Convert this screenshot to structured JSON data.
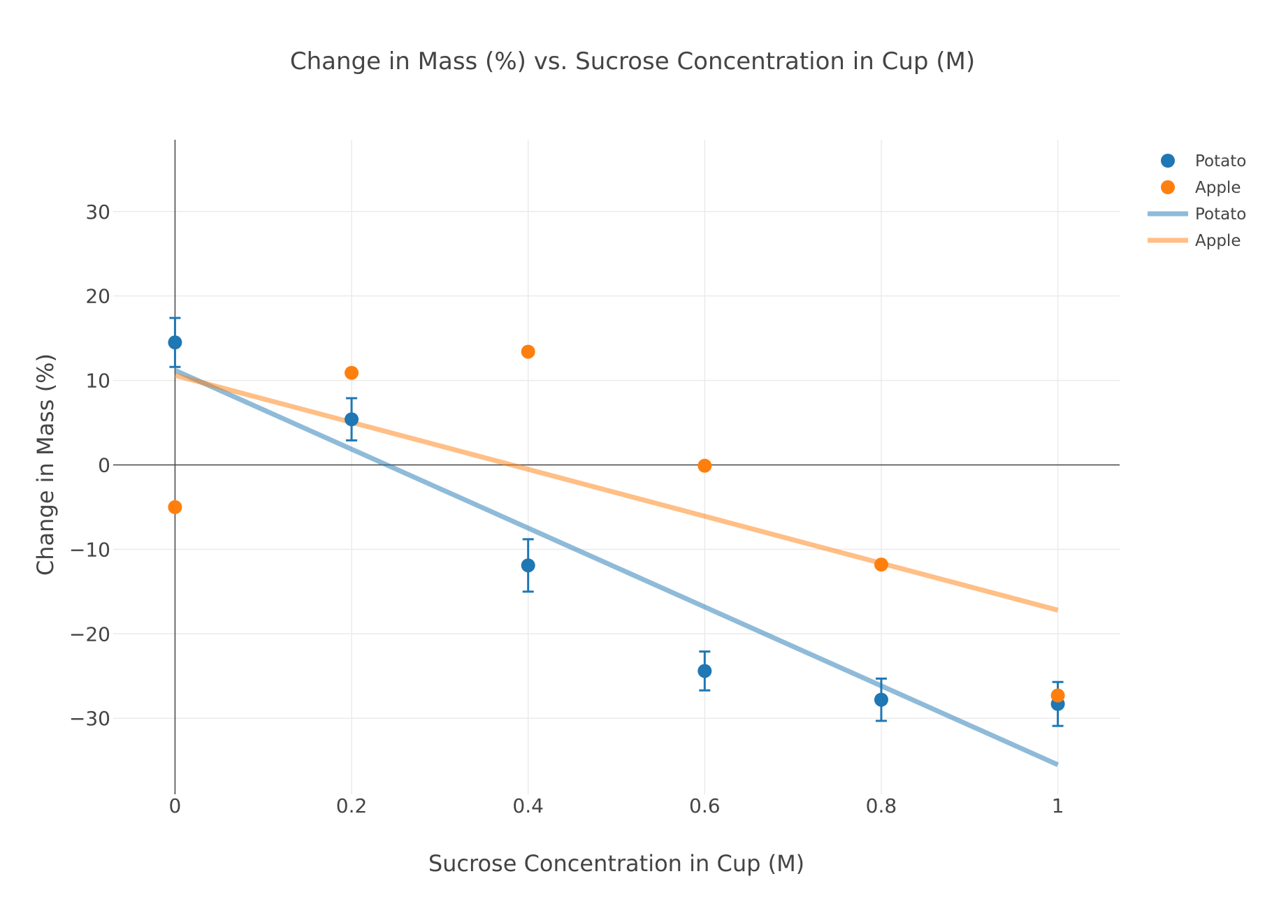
{
  "chart_data": {
    "type": "scatter",
    "title": "Change in Mass (%) vs. Sucrose Concentration in Cup (M)",
    "xlabel": "Sucrose Concentration in Cup (M)",
    "ylabel": "Change in Mass (%)",
    "xlim": [
      -0.07,
      1.07
    ],
    "ylim": [
      -39,
      38.5
    ],
    "x_ticks": [
      0,
      0.2,
      0.4,
      0.6,
      0.8,
      1
    ],
    "x_tick_labels": [
      "0",
      "0.2",
      "0.4",
      "0.6",
      "0.8",
      "1"
    ],
    "y_ticks": [
      30,
      20,
      10,
      0,
      -10,
      -20,
      -30
    ],
    "y_tick_labels": [
      "30",
      "20",
      "10",
      "0",
      "−10",
      "−20",
      "−30"
    ],
    "grid": true,
    "legend_position": "top-right",
    "series": [
      {
        "name": "Potato",
        "kind": "markers",
        "color": "#1f77b4",
        "x": [
          0,
          0.2,
          0.4,
          0.6,
          0.8,
          1
        ],
        "y": [
          14.5,
          5.4,
          -11.9,
          -24.4,
          -27.8,
          -28.3
        ],
        "error": [
          2.9,
          2.5,
          3.1,
          2.3,
          2.5,
          2.6
        ]
      },
      {
        "name": "Apple",
        "kind": "markers",
        "color": "#ff7f0e",
        "x": [
          0,
          0.2,
          0.4,
          0.6,
          0.8,
          1
        ],
        "y": [
          -5.0,
          10.9,
          13.4,
          -0.1,
          -11.8,
          -27.3
        ]
      },
      {
        "name": "Potato",
        "kind": "line",
        "color": "#1f77b4",
        "x": [
          0,
          1
        ],
        "y": [
          11.2,
          -35.5
        ]
      },
      {
        "name": "Apple",
        "kind": "line",
        "color": "#ff7f0e",
        "x": [
          0,
          1
        ],
        "y": [
          10.6,
          -17.2
        ]
      }
    ]
  }
}
